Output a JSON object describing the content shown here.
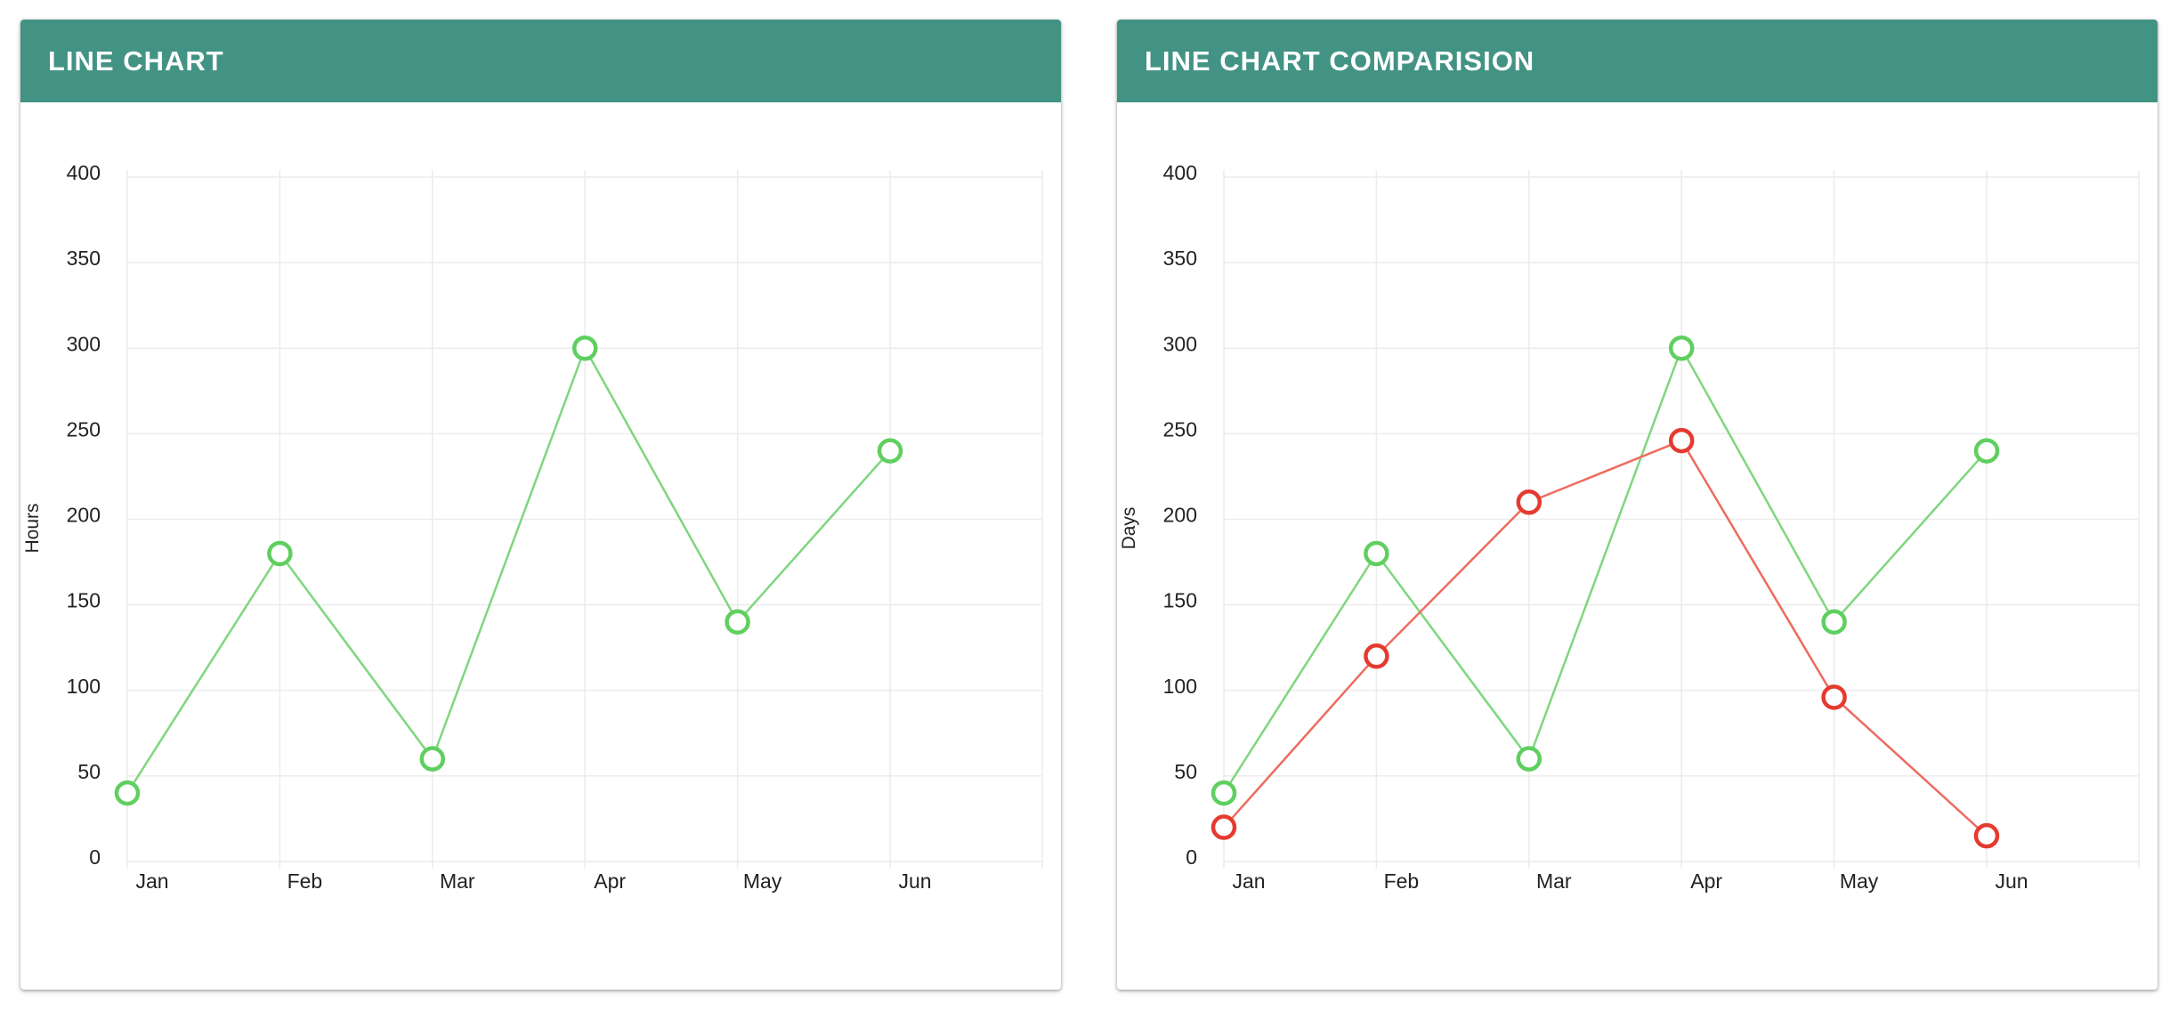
{
  "panels": [
    {
      "title": "LINE CHART",
      "chart_data": {
        "type": "line",
        "categories": [
          "Jan",
          "Feb",
          "Mar",
          "Apr",
          "May",
          "Jun"
        ],
        "series": [
          {
            "values": [
              40,
              180,
              60,
              300,
              140,
              240
            ],
            "color": "#7fd67f",
            "point_color": "#5fcf5f"
          }
        ],
        "ylabel": "Hours",
        "xlabel": "",
        "ylim": [
          0,
          400
        ],
        "yticks": [
          0,
          50,
          100,
          150,
          200,
          250,
          300,
          350,
          400
        ],
        "grid": true,
        "legend": "none"
      }
    },
    {
      "title": "LINE CHART COMPARISION",
      "chart_data": {
        "type": "line",
        "categories": [
          "Jan",
          "Feb",
          "Mar",
          "Apr",
          "May",
          "Jun"
        ],
        "series": [
          {
            "values": [
              40,
              180,
              60,
              300,
              140,
              240
            ],
            "color": "#7fd67f",
            "point_color": "#5fcf5f"
          },
          {
            "values": [
              20,
              120,
              210,
              246,
              96,
              15
            ],
            "color": "#ee6b5f",
            "point_color": "#e53a2f"
          }
        ],
        "ylabel": "Days",
        "xlabel": "",
        "ylim": [
          0,
          400
        ],
        "yticks": [
          0,
          50,
          100,
          150,
          200,
          250,
          300,
          350,
          400
        ],
        "grid": true,
        "legend": "none"
      }
    }
  ],
  "colors": {
    "header_bg": "#429384",
    "header_text": "#ffffff",
    "grid": "#ececec"
  }
}
